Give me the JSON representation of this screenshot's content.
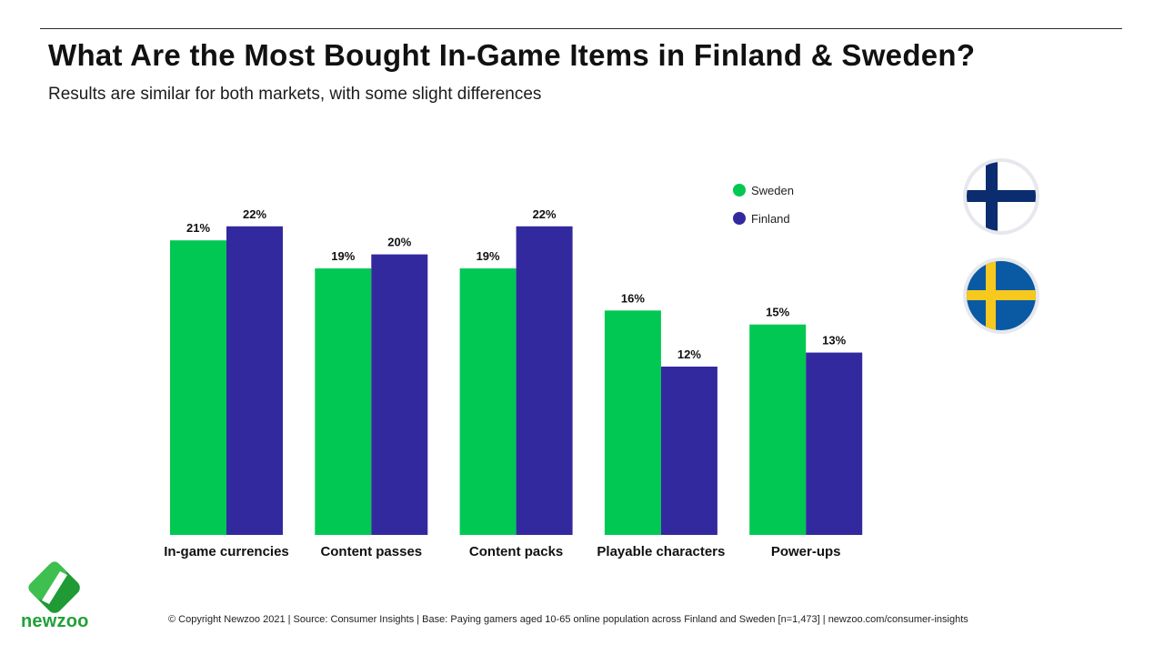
{
  "header": {
    "title": "What Are the Most Bought In-Game Items in Finland & Sweden?",
    "subtitle": "Results are similar for both markets, with some slight differences"
  },
  "colors": {
    "sweden": "#00c853",
    "finland": "#33299e",
    "flag_finland_blue": "#0b2c6e",
    "flag_sweden_blue": "#0a5aa3",
    "flag_sweden_yellow": "#f7c81e",
    "logo_green": "#22a038"
  },
  "chart_data": {
    "type": "bar",
    "categories": [
      "In-game currencies",
      "Content passes",
      "Content packs",
      "Playable characters",
      "Power-ups"
    ],
    "series": [
      {
        "name": "Sweden",
        "values": [
          21,
          19,
          19,
          16,
          15
        ],
        "labels": [
          "21%",
          "19%",
          "19%",
          "16%",
          "15%"
        ]
      },
      {
        "name": "Finland",
        "values": [
          22,
          20,
          22,
          12,
          13
        ],
        "labels": [
          "22%",
          "20%",
          "22%",
          "12%",
          "13%"
        ]
      }
    ],
    "unit": "%",
    "ylim": [
      0,
      22.7
    ],
    "grid": false,
    "legend_position": "top-right"
  },
  "flags": [
    {
      "name": "finland-flag-icon"
    },
    {
      "name": "sweden-flag-icon"
    }
  ],
  "logo": {
    "text": "newzoo",
    "icon": "newzoo-logo-icon"
  },
  "footer": {
    "text": "© Copyright Newzoo 2021 | Source: Consumer Insights | Base: Paying gamers aged 10-65 online population across Finland and Sweden [n=1,473] | newzoo.com/consumer-insights"
  }
}
